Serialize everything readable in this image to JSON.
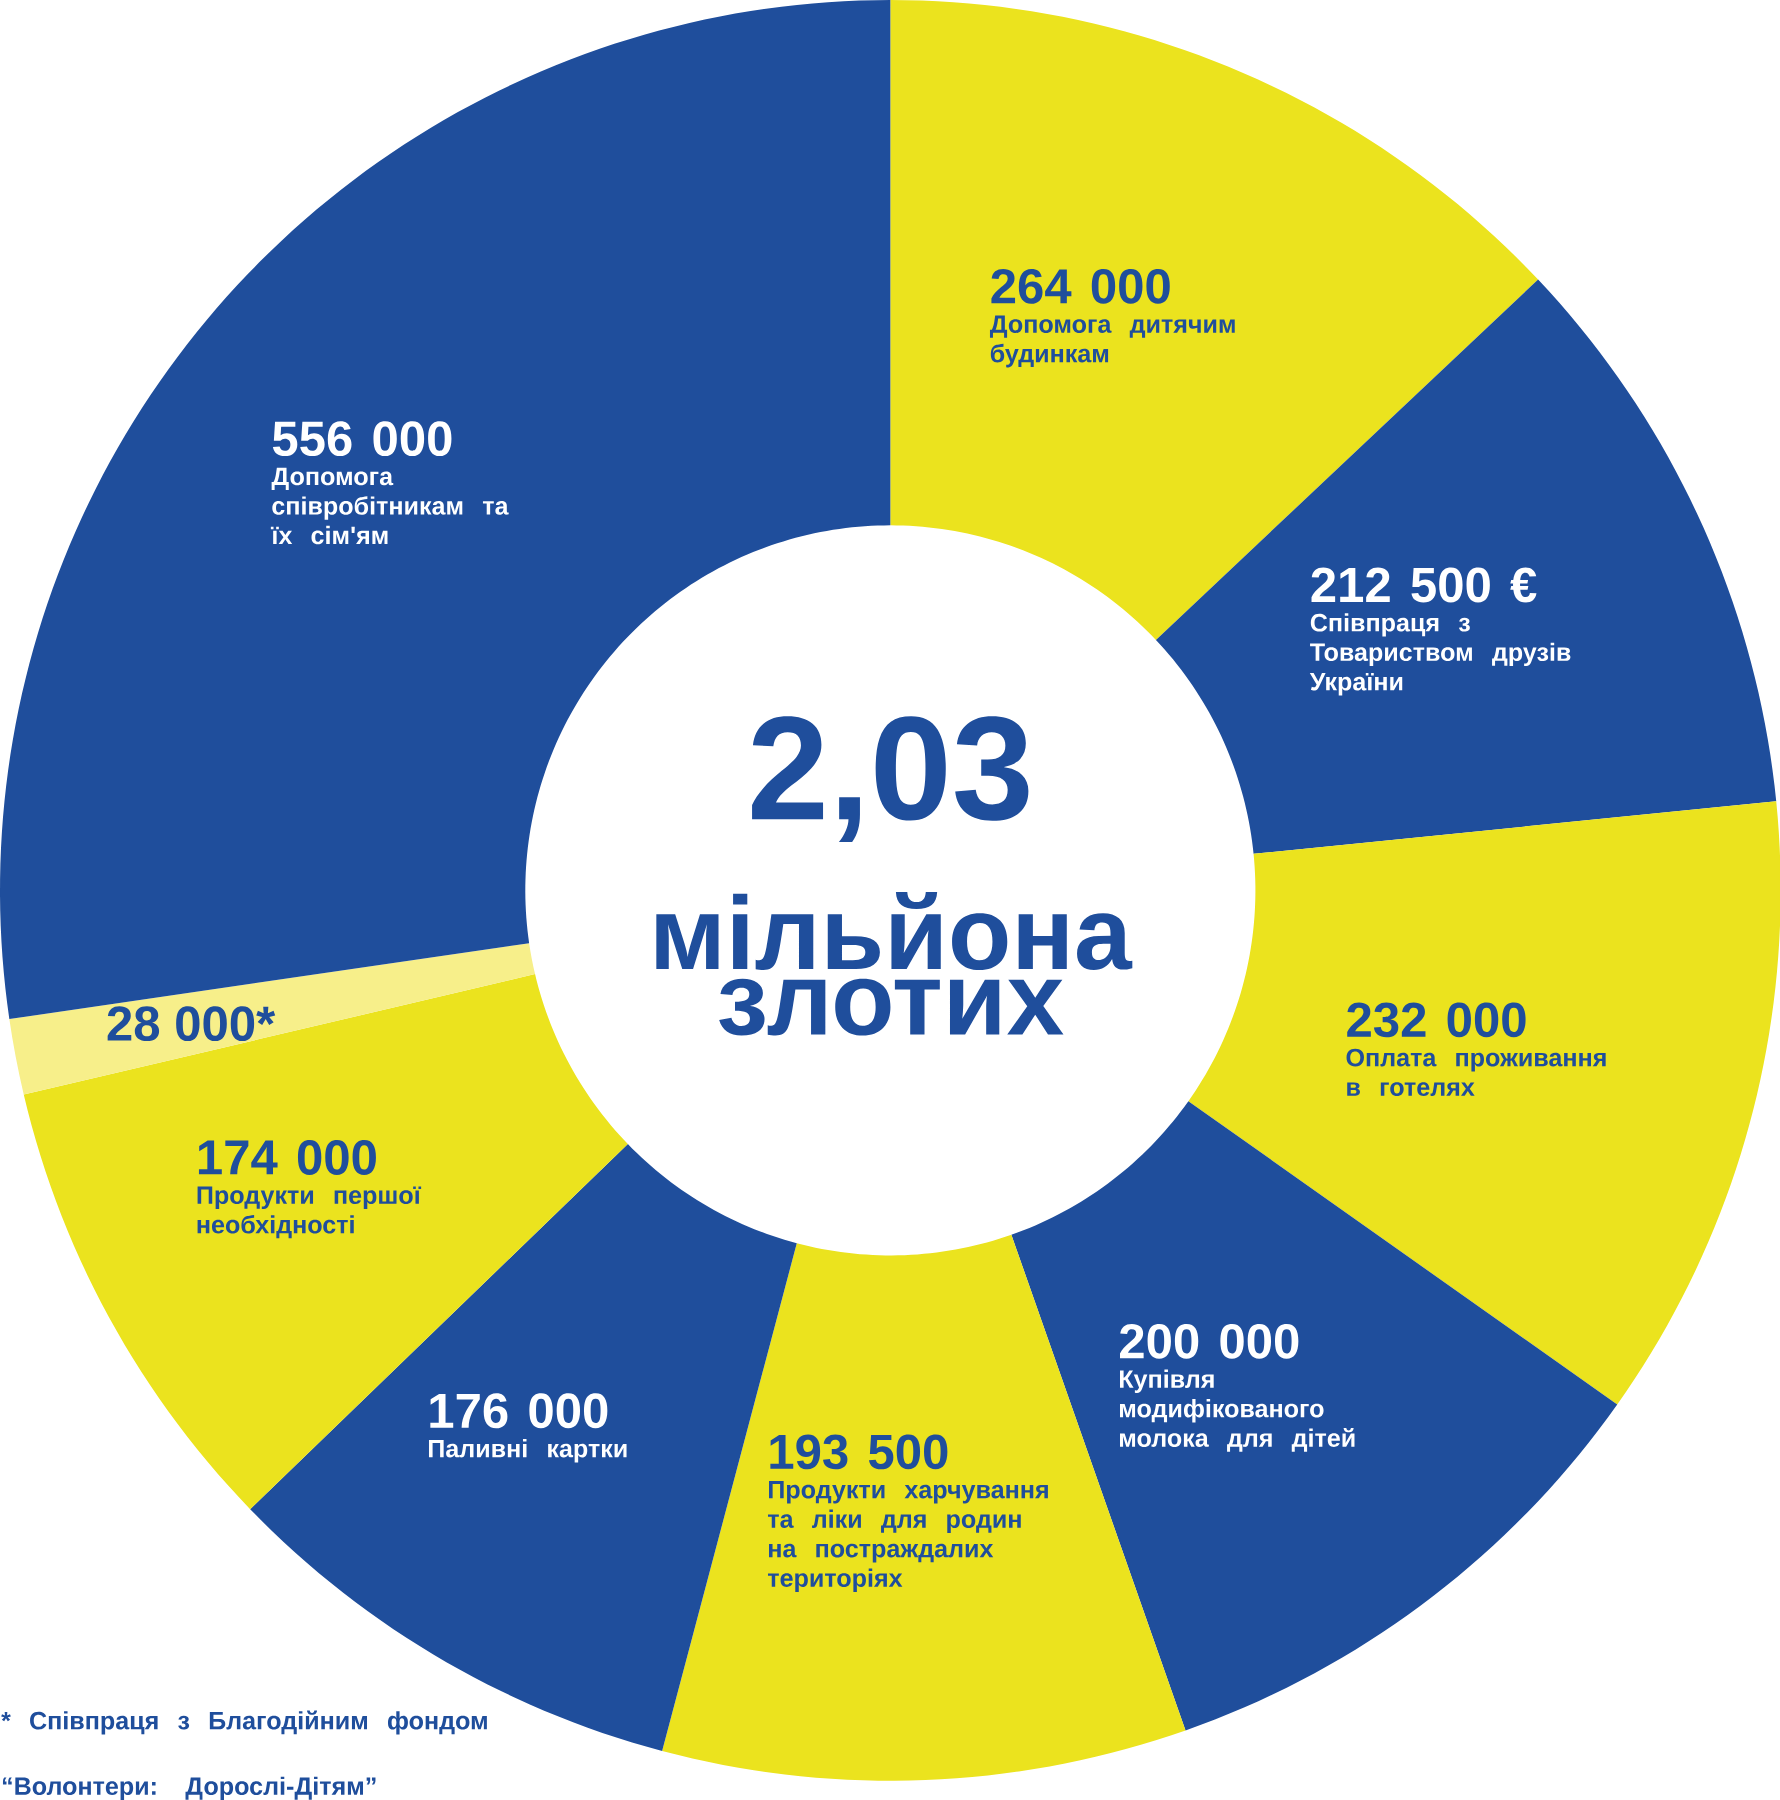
{
  "chart_data": {
    "type": "donut",
    "title": "2,03",
    "subtitle": "мільйона злотих",
    "categories": [
      "Допомога дитячим будинкам",
      "Співпраця з Товариством друзів України",
      "Оплата проживання в готелях",
      "Купівля модифікованого молока для дітей",
      "Продукти харчування та ліки для родин на постраждалих територіях",
      "Паливні картки",
      "Продукти першої необхідності",
      null,
      "Допомога співробітникам та їх сім'ям"
    ],
    "values": [
      264000,
      212500,
      232000,
      200000,
      193500,
      176000,
      174000,
      28000,
      556000
    ],
    "value_labels": [
      "264 000",
      "212 500 €",
      "232 000",
      "200 000",
      "193 500",
      "176 000",
      "174 000",
      "28 000*",
      "556 000"
    ],
    "colors": [
      "#ebe31e",
      "#1f4e9c",
      "#ebe31e",
      "#1f4e9c",
      "#ebe31e",
      "#1f4e9c",
      "#ebe31e",
      "#f7ef8a",
      "#1f4e9c"
    ],
    "annotations": [
      "* Співпраця з Благодійним фондом “Волонтери: Дорослі-Дітям”"
    ]
  }
}
